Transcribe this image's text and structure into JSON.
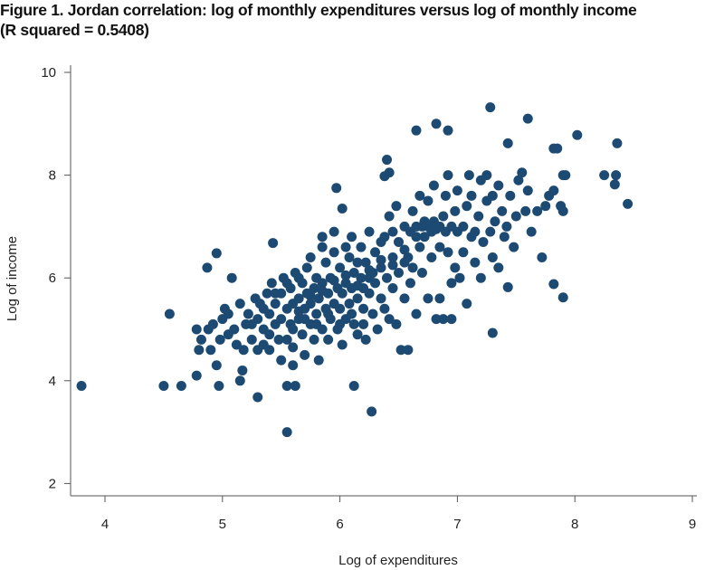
{
  "title_line1": "Figure 1. Jordan correlation: log of monthly expenditures versus log of monthly income",
  "title_line2": "(R squared = 0.5408)",
  "chart_data": {
    "type": "scatter",
    "title": "Figure 1. Jordan correlation: log of monthly expenditures versus log of monthly income (R squared = 0.5408)",
    "xlabel": "Log of expenditures",
    "ylabel": "Log of income",
    "xlim": [
      3.7,
      9.05
    ],
    "ylim": [
      1.8,
      10.1
    ],
    "xticks": [
      "4",
      "5",
      "6",
      "7",
      "8",
      "9"
    ],
    "yticks": [
      "2",
      "4",
      "6",
      "8",
      "10"
    ],
    "r_squared": 0.5408,
    "grid": false,
    "color": "#1c4a73",
    "points": [
      [
        3.8,
        3.9
      ],
      [
        4.5,
        3.9
      ],
      [
        4.65,
        3.9
      ],
      [
        4.97,
        3.9
      ],
      [
        5.3,
        3.68
      ],
      [
        5.55,
        3.0
      ],
      [
        5.55,
        3.9
      ],
      [
        5.62,
        3.9
      ],
      [
        6.12,
        3.9
      ],
      [
        6.27,
        3.4
      ],
      [
        4.55,
        5.3
      ],
      [
        4.87,
        6.2
      ],
      [
        4.95,
        6.48
      ],
      [
        5.08,
        6.0
      ],
      [
        5.43,
        6.68
      ],
      [
        5.97,
        7.75
      ],
      [
        6.02,
        7.35
      ],
      [
        6.4,
        8.3
      ],
      [
        6.42,
        8.05
      ],
      [
        6.38,
        7.98
      ],
      [
        6.65,
        8.87
      ],
      [
        6.82,
        9.0
      ],
      [
        6.92,
        8.87
      ],
      [
        7.28,
        9.32
      ],
      [
        7.6,
        9.1
      ],
      [
        7.43,
        8.62
      ],
      [
        7.82,
        8.52
      ],
      [
        7.85,
        8.52
      ],
      [
        8.02,
        8.78
      ],
      [
        8.36,
        8.62
      ],
      [
        8.25,
        8.0
      ],
      [
        8.35,
        8.0
      ],
      [
        8.34,
        7.82
      ],
      [
        8.45,
        7.44
      ],
      [
        7.9,
        8.0
      ],
      [
        7.92,
        8.0
      ],
      [
        7.88,
        7.4
      ],
      [
        7.9,
        7.3
      ],
      [
        7.9,
        5.62
      ],
      [
        7.82,
        5.88
      ],
      [
        7.72,
        6.4
      ],
      [
        7.3,
        4.93
      ],
      [
        7.43,
        5.82
      ],
      [
        7.63,
        6.9
      ],
      [
        4.78,
        4.1
      ],
      [
        4.95,
        4.3
      ],
      [
        5.15,
        4.0
      ],
      [
        5.17,
        4.2
      ],
      [
        4.8,
        4.6
      ],
      [
        4.78,
        5.0
      ],
      [
        4.82,
        4.8
      ],
      [
        4.9,
        4.6
      ],
      [
        4.88,
        5.0
      ],
      [
        4.92,
        5.1
      ],
      [
        4.98,
        4.8
      ],
      [
        5.0,
        5.2
      ],
      [
        5.02,
        5.4
      ],
      [
        5.05,
        5.3
      ],
      [
        5.1,
        5.0
      ],
      [
        5.12,
        4.7
      ],
      [
        5.18,
        4.6
      ],
      [
        5.2,
        5.1
      ],
      [
        5.22,
        5.3
      ],
      [
        5.25,
        4.8
      ],
      [
        5.28,
        5.6
      ],
      [
        5.3,
        4.6
      ],
      [
        5.3,
        5.2
      ],
      [
        5.32,
        5.5
      ],
      [
        5.35,
        5.0
      ],
      [
        5.38,
        5.7
      ],
      [
        5.4,
        4.6
      ],
      [
        5.4,
        5.3
      ],
      [
        5.42,
        5.9
      ],
      [
        5.45,
        5.1
      ],
      [
        5.45,
        5.5
      ],
      [
        5.48,
        4.8
      ],
      [
        5.5,
        5.2
      ],
      [
        5.5,
        5.7
      ],
      [
        5.5,
        4.4
      ],
      [
        5.52,
        6.0
      ],
      [
        5.55,
        5.4
      ],
      [
        5.55,
        4.8
      ],
      [
        5.58,
        5.1
      ],
      [
        5.58,
        5.8
      ],
      [
        5.6,
        5.5
      ],
      [
        5.6,
        4.3
      ],
      [
        5.62,
        6.1
      ],
      [
        5.65,
        5.2
      ],
      [
        5.65,
        5.6
      ],
      [
        5.68,
        4.9
      ],
      [
        5.68,
        5.9
      ],
      [
        5.7,
        5.4
      ],
      [
        5.7,
        4.5
      ],
      [
        5.72,
        5.7
      ],
      [
        5.72,
        6.2
      ],
      [
        5.75,
        5.1
      ],
      [
        5.75,
        5.5
      ],
      [
        5.78,
        5.8
      ],
      [
        5.78,
        4.8
      ],
      [
        5.8,
        5.3
      ],
      [
        5.8,
        6.0
      ],
      [
        5.82,
        5.6
      ],
      [
        5.82,
        4.4
      ],
      [
        5.85,
        5.0
      ],
      [
        5.85,
        5.9
      ],
      [
        5.85,
        6.6
      ],
      [
        5.88,
        5.4
      ],
      [
        5.88,
        6.3
      ],
      [
        5.9,
        5.7
      ],
      [
        5.9,
        4.8
      ],
      [
        5.92,
        5.2
      ],
      [
        5.92,
        6.0
      ],
      [
        5.95,
        5.5
      ],
      [
        5.95,
        6.5
      ],
      [
        5.98,
        5.8
      ],
      [
        5.98,
        5.0
      ],
      [
        6.0,
        5.4
      ],
      [
        6.0,
        6.2
      ],
      [
        6.02,
        5.7
      ],
      [
        6.02,
        4.7
      ],
      [
        6.05,
        5.9
      ],
      [
        6.05,
        5.2
      ],
      [
        6.08,
        6.4
      ],
      [
        6.08,
        5.5
      ],
      [
        6.1,
        5.8
      ],
      [
        6.1,
        6.8
      ],
      [
        6.12,
        5.1
      ],
      [
        6.12,
        6.1
      ],
      [
        6.15,
        5.6
      ],
      [
        6.15,
        4.9
      ],
      [
        6.18,
        6.0
      ],
      [
        6.18,
        6.6
      ],
      [
        6.2,
        5.4
      ],
      [
        6.2,
        5.8
      ],
      [
        6.22,
        6.3
      ],
      [
        6.22,
        4.8
      ],
      [
        6.25,
        5.7
      ],
      [
        6.25,
        6.9
      ],
      [
        6.28,
        6.1
      ],
      [
        6.28,
        5.3
      ],
      [
        6.3,
        5.9
      ],
      [
        6.3,
        6.5
      ],
      [
        6.32,
        5.0
      ],
      [
        6.35,
        6.2
      ],
      [
        6.35,
        5.6
      ],
      [
        6.38,
        6.8
      ],
      [
        6.38,
        5.4
      ],
      [
        6.4,
        6.0
      ],
      [
        6.42,
        7.2
      ],
      [
        6.42,
        5.2
      ],
      [
        6.45,
        6.4
      ],
      [
        6.45,
        5.8
      ],
      [
        6.48,
        7.4
      ],
      [
        6.48,
        5.1
      ],
      [
        6.5,
        6.7
      ],
      [
        6.5,
        6.1
      ],
      [
        6.52,
        4.6
      ],
      [
        6.55,
        5.6
      ],
      [
        6.55,
        7.0
      ],
      [
        6.58,
        6.4
      ],
      [
        6.58,
        4.6
      ],
      [
        6.6,
        6.9
      ],
      [
        6.6,
        5.9
      ],
      [
        6.62,
        7.3
      ],
      [
        6.62,
        6.2
      ],
      [
        6.65,
        7.0
      ],
      [
        6.65,
        5.3
      ],
      [
        6.68,
        6.6
      ],
      [
        6.68,
        7.6
      ],
      [
        6.7,
        7.0
      ],
      [
        6.7,
        6.1
      ],
      [
        6.72,
        7.1
      ],
      [
        6.72,
        6.8
      ],
      [
        6.75,
        7.0
      ],
      [
        6.75,
        7.5
      ],
      [
        6.78,
        6.9
      ],
      [
        6.78,
        6.4
      ],
      [
        6.8,
        7.1
      ],
      [
        6.8,
        7.8
      ],
      [
        6.82,
        6.95
      ],
      [
        6.82,
        5.2
      ],
      [
        6.85,
        7.0
      ],
      [
        6.85,
        6.6
      ],
      [
        6.88,
        7.2
      ],
      [
        6.88,
        5.2
      ],
      [
        6.9,
        6.9
      ],
      [
        6.9,
        7.6
      ],
      [
        6.92,
        6.5
      ],
      [
        6.92,
        8.0
      ],
      [
        6.95,
        7.0
      ],
      [
        6.95,
        5.9
      ],
      [
        6.98,
        7.3
      ],
      [
        6.98,
        6.2
      ],
      [
        7.0,
        6.9
      ],
      [
        7.0,
        7.7
      ],
      [
        7.02,
        6.0
      ],
      [
        7.05,
        7.0
      ],
      [
        7.05,
        6.5
      ],
      [
        7.08,
        7.4
      ],
      [
        7.08,
        5.5
      ],
      [
        7.1,
        8.0
      ],
      [
        7.12,
        6.8
      ],
      [
        7.12,
        7.6
      ],
      [
        7.15,
        6.9
      ],
      [
        7.15,
        6.3
      ],
      [
        7.18,
        7.2
      ],
      [
        7.2,
        7.9
      ],
      [
        7.2,
        6.0
      ],
      [
        7.22,
        6.7
      ],
      [
        7.25,
        7.5
      ],
      [
        7.25,
        8.0
      ],
      [
        7.28,
        6.9
      ],
      [
        7.3,
        7.6
      ],
      [
        7.3,
        6.4
      ],
      [
        7.32,
        7.1
      ],
      [
        7.35,
        7.8
      ],
      [
        7.35,
        6.2
      ],
      [
        7.38,
        7.3
      ],
      [
        7.4,
        6.8
      ],
      [
        7.42,
        7.0
      ],
      [
        7.45,
        7.6
      ],
      [
        7.48,
        6.6
      ],
      [
        7.5,
        7.2
      ],
      [
        7.52,
        7.9
      ],
      [
        7.55,
        8.05
      ],
      [
        7.58,
        7.3
      ],
      [
        7.6,
        7.7
      ],
      [
        7.68,
        7.3
      ],
      [
        7.75,
        7.4
      ],
      [
        7.78,
        7.6
      ],
      [
        7.82,
        7.7
      ],
      [
        5.05,
        4.9
      ],
      [
        5.15,
        5.5
      ],
      [
        5.25,
        5.1
      ],
      [
        5.35,
        5.4
      ],
      [
        5.45,
        5.7
      ],
      [
        5.55,
        5.9
      ],
      [
        5.65,
        6.0
      ],
      [
        5.75,
        6.4
      ],
      [
        5.85,
        6.8
      ],
      [
        5.95,
        6.9
      ],
      [
        6.05,
        6.6
      ],
      [
        6.15,
        6.3
      ],
      [
        6.25,
        6.0
      ],
      [
        6.35,
        6.7
      ],
      [
        6.45,
        6.9
      ],
      [
        6.55,
        6.3
      ],
      [
        6.65,
        6.8
      ],
      [
        6.75,
        5.6
      ],
      [
        6.85,
        5.6
      ],
      [
        6.95,
        5.2
      ],
      [
        5.6,
        5.0
      ],
      [
        5.7,
        5.2
      ],
      [
        5.8,
        5.1
      ],
      [
        5.9,
        5.3
      ],
      [
        6.0,
        5.1
      ],
      [
        6.1,
        5.3
      ],
      [
        6.2,
        5.1
      ],
      [
        5.65,
        5.35
      ],
      [
        5.75,
        5.65
      ],
      [
        5.85,
        5.75
      ],
      [
        5.95,
        5.95
      ],
      [
        6.05,
        6.05
      ],
      [
        6.15,
        5.85
      ],
      [
        6.25,
        6.15
      ],
      [
        6.35,
        6.35
      ],
      [
        6.45,
        6.25
      ],
      [
        6.55,
        6.55
      ],
      [
        5.4,
        4.9
      ],
      [
        5.35,
        4.7
      ],
      [
        5.6,
        4.65
      ]
    ]
  }
}
